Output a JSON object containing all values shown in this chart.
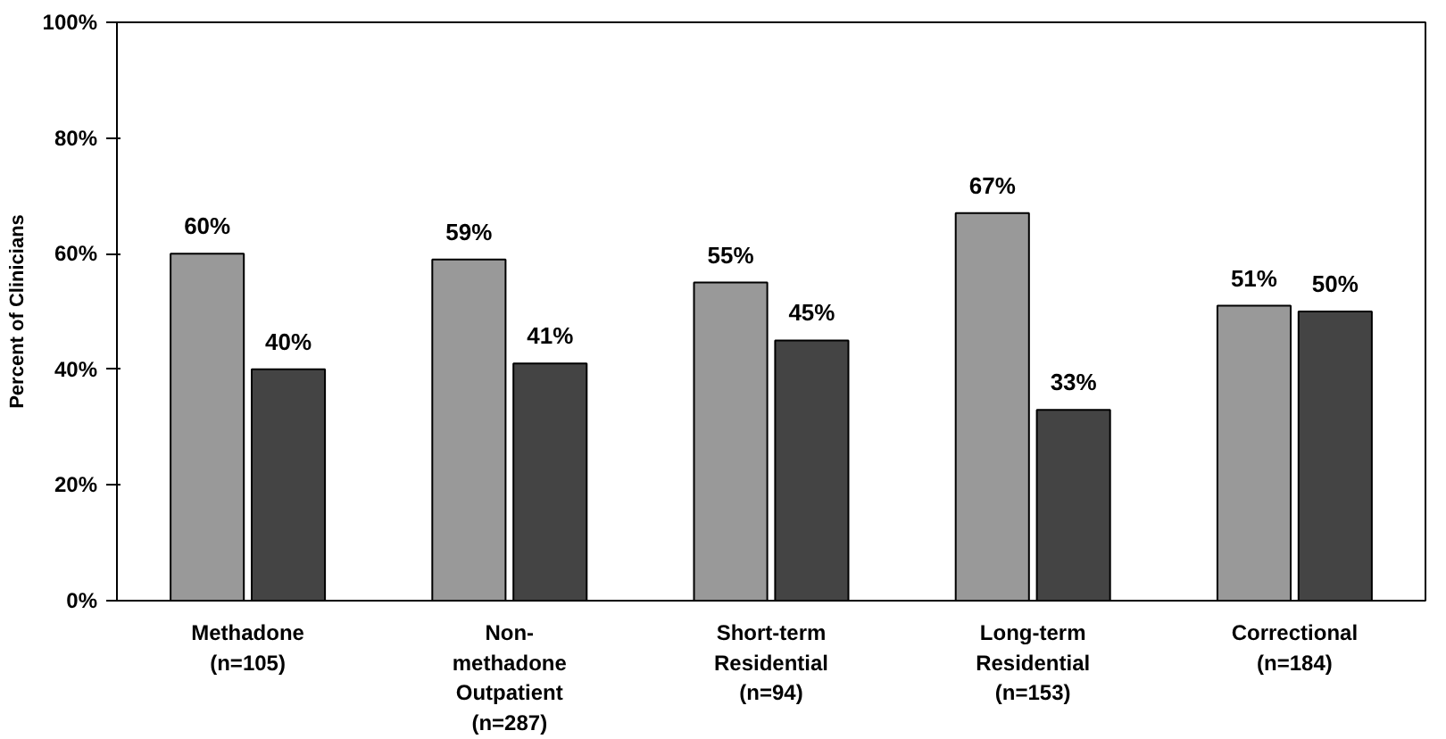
{
  "chart_data": {
    "type": "bar",
    "ylabel": "Percent of Clinicians",
    "categories": [
      "Methadone\n(n=105)",
      "Non-\nmethadone\nOutpatient\n(n=287)",
      "Short-term\nResidential\n(n=94)",
      "Long-term\nResidential\n(n=153)",
      "Correctional\n(n=184)"
    ],
    "series": [
      {
        "color": "#999999",
        "values": [
          60,
          59,
          55,
          67,
          51
        ],
        "value_labels": [
          "60%",
          "59%",
          "55%",
          "67%",
          "51%"
        ]
      },
      {
        "color": "#444444",
        "values": [
          40,
          41,
          45,
          33,
          50
        ],
        "value_labels": [
          "40%",
          "41%",
          "45%",
          "33%",
          "50%"
        ]
      }
    ],
    "ylim": [
      0,
      100
    ],
    "yticks": [
      {
        "value": 0,
        "label": "0%"
      },
      {
        "value": 20,
        "label": "20%"
      },
      {
        "value": 40,
        "label": "40%"
      },
      {
        "value": 60,
        "label": "60%"
      },
      {
        "value": 80,
        "label": "80%"
      },
      {
        "value": 100,
        "label": "100%"
      }
    ],
    "grid": false
  }
}
